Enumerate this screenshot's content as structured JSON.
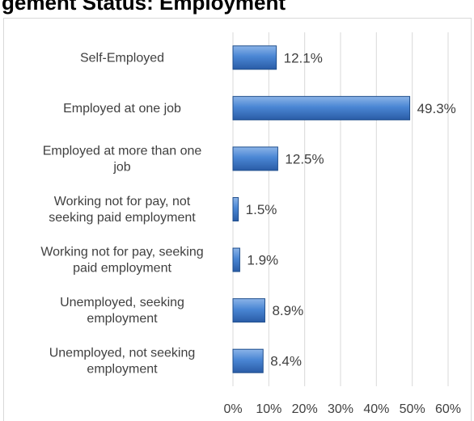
{
  "header": {
    "title": "gement Status: Employment"
  },
  "chart_data": {
    "type": "bar",
    "orientation": "horizontal",
    "categories": [
      "Self-Employed",
      "Employed at one job",
      "Employed at more than one job",
      "Working not for pay, not seeking paid employment",
      "Working not for pay, seeking paid employment",
      "Unemployed, seeking employment",
      "Unemployed, not seeking employment"
    ],
    "category_lines": [
      [
        "Self-Employed"
      ],
      [
        "Employed at one job"
      ],
      [
        "Employed at more than one",
        "job"
      ],
      [
        "Working not for pay, not",
        "seeking paid employment"
      ],
      [
        "Working not for pay, seeking",
        "paid employment"
      ],
      [
        "Unemployed, seeking",
        "employment"
      ],
      [
        "Unemployed, not seeking",
        "employment"
      ]
    ],
    "values": [
      12.1,
      49.3,
      12.5,
      1.5,
      1.9,
      8.9,
      8.4
    ],
    "value_labels": [
      "12.1%",
      "49.3%",
      "12.5%",
      "1.5%",
      "1.9%",
      "8.9%",
      "8.4%"
    ],
    "xlim": [
      0,
      60
    ],
    "ticks": [
      0,
      10,
      20,
      30,
      40,
      50,
      60
    ],
    "tick_labels": [
      "0%",
      "10%",
      "20%",
      "30%",
      "40%",
      "50%",
      "60%"
    ],
    "grid": true,
    "legend": "none",
    "colors": {
      "bar_light": "#8cb4e8",
      "bar_mid": "#4a86d4",
      "bar_dark": "#2a5ca6",
      "bar_edge": "#1f4e8c",
      "grid": "#d9d9d9"
    }
  }
}
